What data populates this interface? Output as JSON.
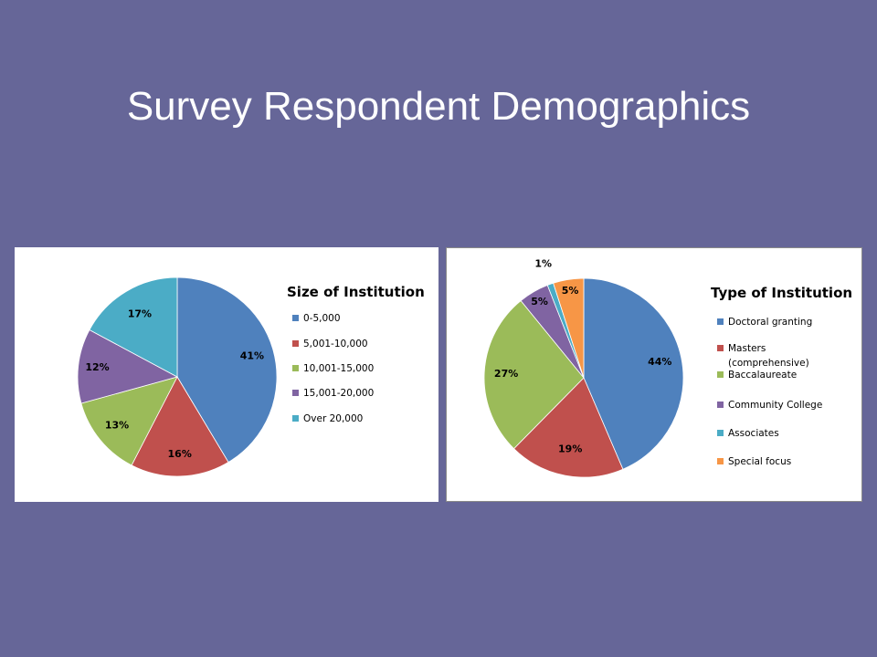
{
  "slide": {
    "title": "Survey Respondent Demographics"
  },
  "chart_data": [
    {
      "type": "pie",
      "title": "Size of Institution",
      "legend": "right",
      "categories": [
        "0-5,000",
        "5,001-10,000",
        "10,001-15,000",
        "15,001-20,000",
        "Over 20,000"
      ],
      "values": [
        41,
        16,
        13,
        12,
        17
      ],
      "labels": [
        "41%",
        "16%",
        "13%",
        "12%",
        "17%"
      ],
      "colors": [
        "#4F81BD",
        "#C0504D",
        "#9BBB59",
        "#8064A2",
        "#4BACC6"
      ]
    },
    {
      "type": "pie",
      "title": "Type of Institution",
      "legend": "right",
      "categories": [
        "Doctoral granting",
        "Masters (comprehensive)",
        "Baccalaureate",
        "Community College",
        "Associates",
        "Special focus"
      ],
      "values": [
        44,
        19,
        27,
        5,
        1,
        5
      ],
      "labels": [
        "44%",
        "19%",
        "27%",
        "5%",
        "1%",
        "5%"
      ],
      "colors": [
        "#4F81BD",
        "#C0504D",
        "#9BBB59",
        "#8064A2",
        "#4BACC6",
        "#F79646"
      ]
    }
  ]
}
